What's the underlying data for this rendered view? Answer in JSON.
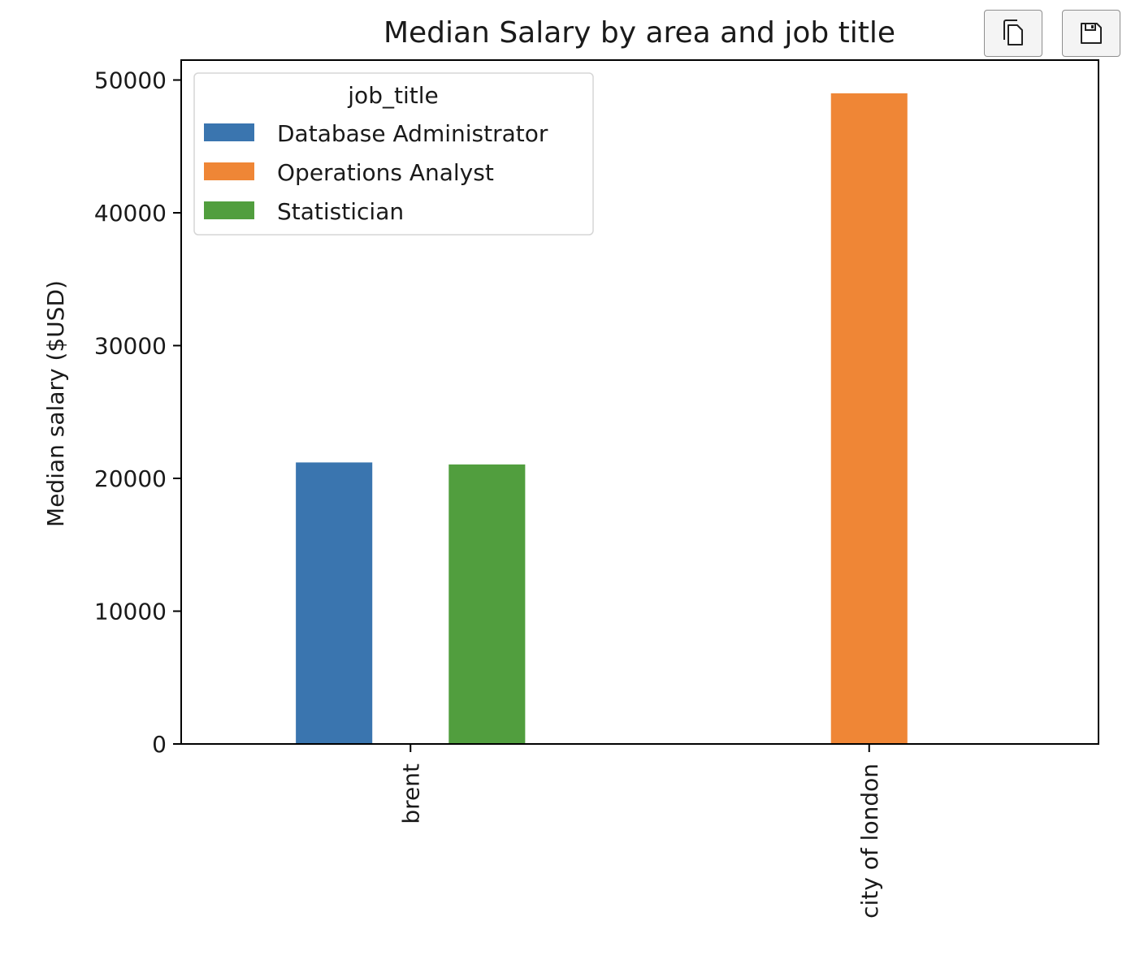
{
  "toolbar": {
    "copy_icon": "copy-icon",
    "save_icon": "save-icon"
  },
  "chart_data": {
    "type": "bar",
    "title": "Median Salary by area and job title",
    "xlabel": "",
    "ylabel": "Median salary ($USD)",
    "categories": [
      "brent",
      "city of london"
    ],
    "legend": {
      "title": "job_title",
      "placement": "top-left"
    },
    "series": [
      {
        "name": "Database Administrator",
        "color": "#3a75af",
        "values": [
          21200,
          null
        ]
      },
      {
        "name": "Operations Analyst",
        "color": "#ef8636",
        "values": [
          null,
          49000
        ]
      },
      {
        "name": "Statistician",
        "color": "#519e3e",
        "values": [
          21050,
          null
        ]
      }
    ],
    "ylim": [
      0,
      51500
    ],
    "yticks": [
      0,
      10000,
      20000,
      30000,
      40000,
      50000
    ],
    "grid": false
  }
}
